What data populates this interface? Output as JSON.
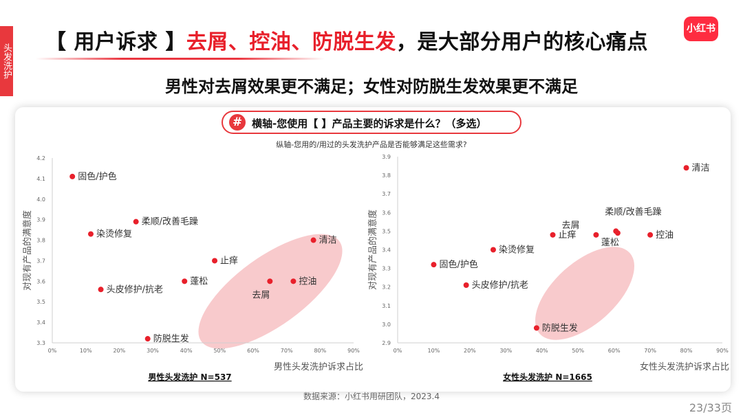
{
  "side_tab": "头发洗护",
  "logo": "小红书",
  "title": {
    "bracket": "【 用户诉求 】",
    "highlight": "去屑、控油、防脱生发",
    "rest": "，是大部分用户的核心痛点"
  },
  "subtitle": "男性对去屑效果更不满足；女性对防脱生发效果更不满足",
  "question_icon": "#",
  "question": "横轴-您使用【 】产品主要的诉求是什么？（多选）",
  "y_question": "纵轴-您用的/用过的头发洗护产品是否能够满足这些需求?",
  "colors": {
    "accent": "#e8202b",
    "point": "#e8202b",
    "ellipse": "#f5b8bb"
  },
  "chart_data": [
    {
      "type": "scatter",
      "xlabel": "男性头发洗护诉求占比",
      "ylabel": "对现有产品的满意度",
      "footer": "男性头发洗护 N=537",
      "xlim": [
        0,
        0.9
      ],
      "ylim": [
        3.3,
        4.2
      ],
      "xticks": [
        "0%",
        "10%",
        "20%",
        "30%",
        "40%",
        "50%",
        "60%",
        "70%",
        "80%",
        "90%"
      ],
      "yticks": [
        "3.3",
        "3.4",
        "3.5",
        "3.6",
        "3.7",
        "3.8",
        "3.9",
        "4.0",
        "4.1",
        "4.2"
      ],
      "grid": false,
      "points": [
        {
          "label": "固色/护色",
          "x": 0.06,
          "y": 4.11
        },
        {
          "label": "柔顺/改善毛躁",
          "x": 0.25,
          "y": 3.89
        },
        {
          "label": "染烫修复",
          "x": 0.115,
          "y": 3.83
        },
        {
          "label": "清洁",
          "x": 0.78,
          "y": 3.8
        },
        {
          "label": "止痒",
          "x": 0.485,
          "y": 3.7
        },
        {
          "label": "蓬松",
          "x": 0.395,
          "y": 3.6
        },
        {
          "label": "去屑",
          "x": 0.65,
          "y": 3.6
        },
        {
          "label": "控油",
          "x": 0.72,
          "y": 3.6
        },
        {
          "label": "头皮修护/抗老",
          "x": 0.145,
          "y": 3.56
        },
        {
          "label": "防脱生发",
          "x": 0.285,
          "y": 3.32
        }
      ]
    },
    {
      "type": "scatter",
      "xlabel": "女性头发洗护诉求占比",
      "ylabel": "对现有产品的满意度",
      "footer": "女性头发洗护 N=1665",
      "xlim": [
        0,
        0.9
      ],
      "ylim": [
        2.9,
        3.9
      ],
      "xticks": [
        "0%",
        "10%",
        "20%",
        "30%",
        "40%",
        "50%",
        "60%",
        "70%",
        "80%",
        "90%"
      ],
      "yticks": [
        "2.9",
        "3.0",
        "3.1",
        "3.2",
        "3.3",
        "3.4",
        "3.5",
        "3.6",
        "3.7",
        "3.8",
        "3.9"
      ],
      "grid": false,
      "points": [
        {
          "label": "清洁",
          "x": 0.8,
          "y": 3.84
        },
        {
          "label": "柔顺/改善毛躁",
          "x": 0.605,
          "y": 3.5
        },
        {
          "label": "去屑",
          "x": 0.55,
          "y": 3.48
        },
        {
          "label": "蓬松",
          "x": 0.61,
          "y": 3.49
        },
        {
          "label": "控油",
          "x": 0.7,
          "y": 3.48
        },
        {
          "label": "止痒",
          "x": 0.43,
          "y": 3.48
        },
        {
          "label": "染烫修复",
          "x": 0.265,
          "y": 3.4
        },
        {
          "label": "固色/护色",
          "x": 0.1,
          "y": 3.32
        },
        {
          "label": "头皮修护/抗老",
          "x": 0.19,
          "y": 3.21
        },
        {
          "label": "防脱生发",
          "x": 0.385,
          "y": 2.98
        }
      ]
    }
  ],
  "source": "数据来源：小红书用研团队，2023.4",
  "page": "23/33页"
}
